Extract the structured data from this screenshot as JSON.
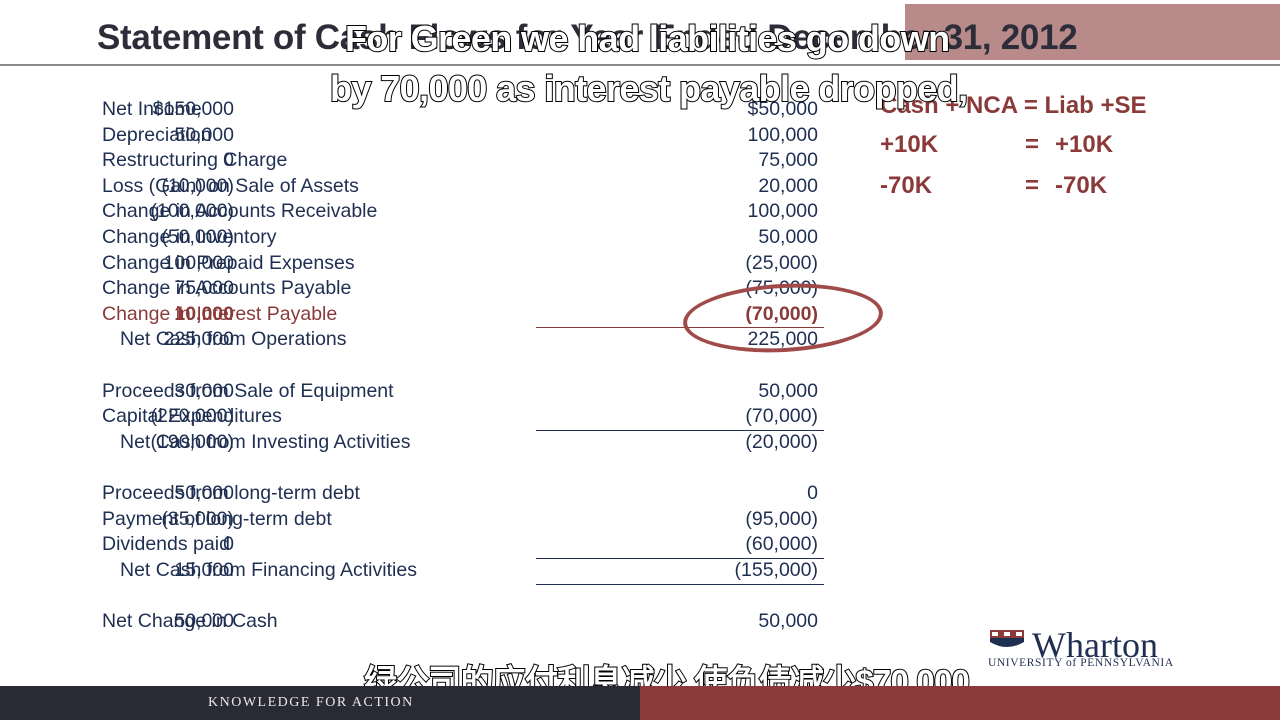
{
  "slide": {
    "title": "Statement of Cash Flows for Year Ended December 31, 2012"
  },
  "subtitles": {
    "line1": "For Green we had liabilities go down",
    "line2": "by 70,000 as interest payable dropped,",
    "chinese": "绿公司的应付利息减少 使负债减少$70,000"
  },
  "cash_flow": {
    "operations": [
      {
        "label": "Net Income",
        "col1": "$150,000",
        "col2": "$50,000"
      },
      {
        "label": "Depreciation",
        "col1": "50,000",
        "col2": "100,000"
      },
      {
        "label": "Restructuring Charge",
        "col1": "0",
        "col2": "75,000"
      },
      {
        "label": "Loss (Gain) on Sale of Assets",
        "col1": "(10,000)",
        "col2": "20,000"
      },
      {
        "label": "Change in Accounts Receivable",
        "col1": "(100,000)",
        "col2": "100,000"
      },
      {
        "label": "Change in Inventory",
        "col1": "(50,000)",
        "col2": "50,000"
      },
      {
        "label": "Change in Prepaid Expenses",
        "col1": "100,000",
        "col2": "(25,000)"
      },
      {
        "label": "Change in Accounts Payable",
        "col1": "75,000",
        "col2": "(75,000)"
      },
      {
        "label": "Change in Interest Payable",
        "col1": "10,000",
        "col2": "(70,000)"
      }
    ],
    "operations_total": {
      "label": "Net Cash from Operations",
      "col1": "225,000",
      "col2": "225,000"
    },
    "investing": [
      {
        "label": "Proceeds from Sale of Equipment",
        "col1": "30,000",
        "col2": "50,000"
      },
      {
        "label": "Capital Expenditures",
        "col1": "(220,000)",
        "col2": "(70,000)"
      }
    ],
    "investing_total": {
      "label": "Net Cash from Investing Activities",
      "col1": "(190,000)",
      "col2": "(20,000)"
    },
    "financing": [
      {
        "label": "Proceeds from long-term debt",
        "col1": "50,000",
        "col2": "0"
      },
      {
        "label": "Payment of long-term debt",
        "col1": "(35,000)",
        "col2": "(95,000)"
      },
      {
        "label": "Dividends paid",
        "col1": "0",
        "col2": "(60,000)"
      }
    ],
    "financing_total": {
      "label": "Net Cash from Financing Activities",
      "col1": "15,000",
      "col2": "(155,000)"
    },
    "net_change": {
      "label": "Net Change in Cash",
      "col1": "50,000",
      "col2": "50,000"
    }
  },
  "equation": {
    "header": "Cash + NCA = Liab +SE",
    "rows": [
      {
        "left": "+10K",
        "eq": "=",
        "right": "+10K"
      },
      {
        "left": "-70K",
        "eq": "=",
        "right": "-70K"
      }
    ]
  },
  "branding": {
    "logo_word": "Wharton",
    "logo_sub": "UNIVERSITY of PENNSYLVANIA",
    "tagline": "KNOWLEDGE FOR ACTION"
  },
  "colors": {
    "navy": "#1f2f52",
    "accent_red": "#8b3a3a",
    "footer_dark": "#2a2a34"
  }
}
